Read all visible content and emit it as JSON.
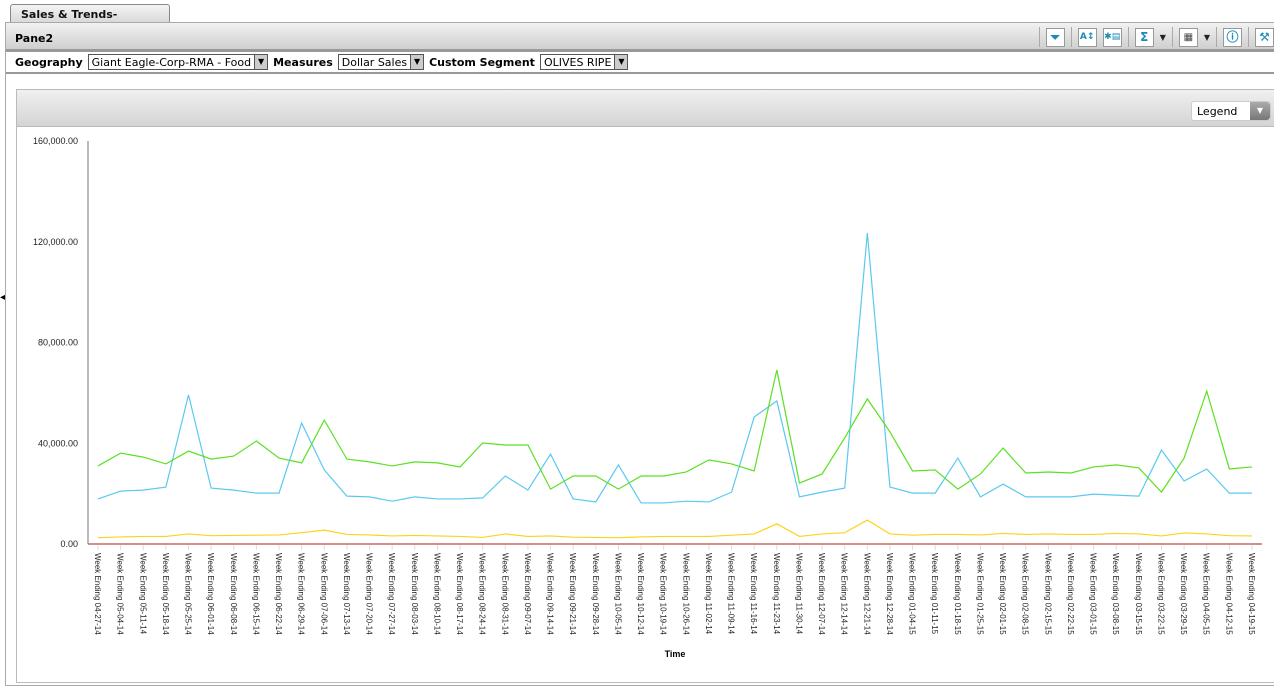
{
  "tab": {
    "label": "Sales & Trends-Seasonal..."
  },
  "pane": {
    "title": "Pane2"
  },
  "toolbar": {
    "icons": [
      "filter-icon",
      "sort-az-icon",
      "select-columns-icon",
      "sum-icon",
      "grid-layout-icon",
      "info-icon",
      "tools-icon"
    ]
  },
  "filters": {
    "geography": {
      "label": "Geography",
      "value": "Giant Eagle-Corp-RMA - Food"
    },
    "measures": {
      "label": "Measures",
      "value": "Dollar Sales"
    },
    "segment": {
      "label": "Custom Segment",
      "value": "OLIVES RIPE"
    }
  },
  "legend_select": {
    "value": "Legend"
  },
  "chart_data": {
    "type": "line",
    "xlabel": "Time",
    "ylabel": "",
    "ylim": [
      0,
      160000
    ],
    "yticks": [
      "0.00",
      "40,000.00",
      "80,000.00",
      "120,000.00",
      "160,000.00"
    ],
    "grid": false,
    "categories": [
      "Week Ending 04-27-14",
      "Week Ending 05-04-14",
      "Week Ending 05-11-14",
      "Week Ending 05-18-14",
      "Week Ending 05-25-14",
      "Week Ending 06-01-14",
      "Week Ending 06-08-14",
      "Week Ending 06-15-14",
      "Week Ending 06-22-14",
      "Week Ending 06-29-14",
      "Week Ending 07-06-14",
      "Week Ending 07-13-14",
      "Week Ending 07-20-14",
      "Week Ending 07-27-14",
      "Week Ending 08-03-14",
      "Week Ending 08-10-14",
      "Week Ending 08-17-14",
      "Week Ending 08-24-14",
      "Week Ending 08-31-14",
      "Week Ending 09-07-14",
      "Week Ending 09-14-14",
      "Week Ending 09-21-14",
      "Week Ending 09-28-14",
      "Week Ending 10-05-14",
      "Week Ending 10-12-14",
      "Week Ending 10-19-14",
      "Week Ending 10-26-14",
      "Week Ending 11-02-14",
      "Week Ending 11-09-14",
      "Week Ending 11-16-14",
      "Week Ending 11-23-14",
      "Week Ending 11-30-14",
      "Week Ending 12-07-14",
      "Week Ending 12-14-14",
      "Week Ending 12-21-14",
      "Week Ending 12-28-14",
      "Week Ending 01-04-15",
      "Week Ending 01-11-15",
      "Week Ending 01-18-15",
      "Week Ending 01-25-15",
      "Week Ending 02-01-15",
      "Week Ending 02-08-15",
      "Week Ending 02-15-15",
      "Week Ending 02-22-15",
      "Week Ending 03-01-15",
      "Week Ending 03-08-15",
      "Week Ending 03-15-15",
      "Week Ending 03-22-15",
      "Week Ending 03-29-15",
      "Week Ending 04-05-15",
      "Week Ending 04-12-15",
      "Week Ending 04-19-15"
    ],
    "series": [
      {
        "color": "#5bc8f0",
        "values": [
          17900,
          21000,
          21400,
          22600,
          59200,
          22200,
          21400,
          20200,
          20200,
          48000,
          29400,
          19000,
          18700,
          17000,
          18700,
          17900,
          17900,
          18300,
          27000,
          21400,
          35700,
          17900,
          16700,
          31400,
          16300,
          16300,
          17000,
          16700,
          20600,
          50400,
          56800,
          18700,
          20600,
          22200,
          123500,
          22600,
          20200,
          20200,
          34100,
          18700,
          23800,
          18700,
          18700,
          18700,
          19800,
          19400,
          19000,
          37300,
          25000,
          29800,
          20200,
          20200
        ]
      },
      {
        "color": "#5ce020",
        "values": [
          31000,
          36100,
          34500,
          31800,
          36900,
          33700,
          34900,
          40900,
          34100,
          32200,
          49200,
          33700,
          32600,
          31000,
          32600,
          32200,
          30600,
          40100,
          39300,
          39300,
          21800,
          27000,
          27000,
          21800,
          27000,
          27000,
          28600,
          33400,
          31800,
          29000,
          69100,
          24200,
          27800,
          42100,
          57600,
          44500,
          29000,
          29400,
          21800,
          27800,
          38100,
          28200,
          28600,
          28200,
          30600,
          31400,
          30200,
          20600,
          34100,
          60700,
          29800,
          30600
        ]
      },
      {
        "color": "#ffd21a",
        "values": [
          2500,
          2800,
          3000,
          3000,
          4000,
          3300,
          3400,
          3500,
          3600,
          4500,
          5500,
          3800,
          3600,
          3200,
          3400,
          3200,
          3000,
          2600,
          4000,
          3000,
          3200,
          2700,
          2600,
          2500,
          2800,
          3000,
          3000,
          3000,
          3500,
          4000,
          8000,
          3000,
          4000,
          4500,
          9500,
          4000,
          3500,
          3800,
          3800,
          3600,
          4200,
          3800,
          4000,
          3800,
          3800,
          4200,
          4000,
          3200,
          4400,
          4000,
          3300,
          3200
        ]
      }
    ]
  }
}
